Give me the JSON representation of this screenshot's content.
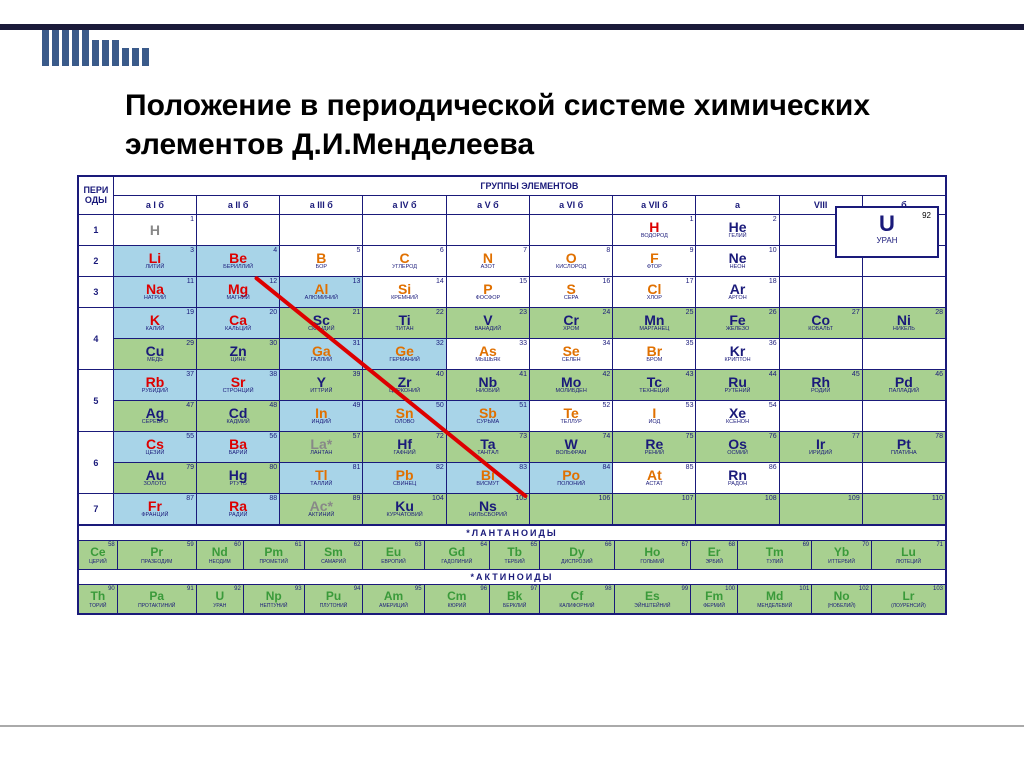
{
  "title": "Положение в периодической системе химических элементов Д.И.Менделеева",
  "headers": {
    "groups": "ГРУППЫ ЭЛЕМЕНТОВ",
    "periods": "ПЕРИ ОДЫ",
    "cols": [
      "а I б",
      "а II б",
      "а III б",
      "а IV б",
      "а V б",
      "а VI б",
      "а VII б",
      "а",
      "VIII",
      "б"
    ]
  },
  "legend": {
    "sym": "U",
    "name": "УРАН",
    "num": "92"
  },
  "periods": [
    {
      "n": "1",
      "rows": [
        [
          {
            "s": "H",
            "n": "",
            "num": "1",
            "bg": "bg-white",
            "c": "c-gray"
          },
          null,
          null,
          null,
          null,
          null,
          {
            "s": "H",
            "n": "ВОДОРОД",
            "num": "1",
            "bg": "bg-white",
            "c": "c-red"
          },
          {
            "s": "He",
            "n": "ГЕЛИЙ",
            "num": "2",
            "bg": "bg-white",
            "c": "c-blue"
          },
          null,
          null
        ]
      ]
    },
    {
      "n": "2",
      "rows": [
        [
          {
            "s": "Li",
            "n": "ЛИТИЙ",
            "num": "3",
            "bg": "bg-blue",
            "c": "c-red"
          },
          {
            "s": "Be",
            "n": "БЕРИЛЛИЙ",
            "num": "4",
            "bg": "bg-blue",
            "c": "c-red"
          },
          {
            "s": "B",
            "n": "БОР",
            "num": "5",
            "bg": "bg-white",
            "c": "c-orange"
          },
          {
            "s": "C",
            "n": "УГЛЕРОД",
            "num": "6",
            "bg": "bg-white",
            "c": "c-orange"
          },
          {
            "s": "N",
            "n": "АЗОТ",
            "num": "7",
            "bg": "bg-white",
            "c": "c-orange"
          },
          {
            "s": "O",
            "n": "КИСЛОРОД",
            "num": "8",
            "bg": "bg-white",
            "c": "c-orange"
          },
          {
            "s": "F",
            "n": "ФТОР",
            "num": "9",
            "bg": "bg-white",
            "c": "c-orange"
          },
          {
            "s": "Ne",
            "n": "НЕОН",
            "num": "10",
            "bg": "bg-white",
            "c": "c-blue"
          },
          null,
          null
        ]
      ]
    },
    {
      "n": "3",
      "rows": [
        [
          {
            "s": "Na",
            "n": "НАТРИЙ",
            "num": "11",
            "bg": "bg-blue",
            "c": "c-red"
          },
          {
            "s": "Mg",
            "n": "МАГНИЙ",
            "num": "12",
            "bg": "bg-blue",
            "c": "c-red"
          },
          {
            "s": "Al",
            "n": "АЛЮМИНИЙ",
            "num": "13",
            "bg": "bg-blue",
            "c": "c-orange"
          },
          {
            "s": "Si",
            "n": "КРЕМНИЙ",
            "num": "14",
            "bg": "bg-white",
            "c": "c-orange"
          },
          {
            "s": "P",
            "n": "ФОСФОР",
            "num": "15",
            "bg": "bg-white",
            "c": "c-orange"
          },
          {
            "s": "S",
            "n": "СЕРА",
            "num": "16",
            "bg": "bg-white",
            "c": "c-orange"
          },
          {
            "s": "Cl",
            "n": "ХЛОР",
            "num": "17",
            "bg": "bg-white",
            "c": "c-orange"
          },
          {
            "s": "Ar",
            "n": "АРГОН",
            "num": "18",
            "bg": "bg-white",
            "c": "c-blue"
          },
          null,
          null
        ]
      ]
    },
    {
      "n": "4",
      "rows": [
        [
          {
            "s": "K",
            "n": "КАЛИЙ",
            "num": "19",
            "bg": "bg-blue",
            "c": "c-red"
          },
          {
            "s": "Ca",
            "n": "КАЛЬЦИЙ",
            "num": "20",
            "bg": "bg-blue",
            "c": "c-red"
          },
          {
            "s": "Sc",
            "n": "СКАНДИЙ",
            "num": "21",
            "bg": "bg-green",
            "c": "c-blue"
          },
          {
            "s": "Ti",
            "n": "ТИТАН",
            "num": "22",
            "bg": "bg-green",
            "c": "c-blue"
          },
          {
            "s": "V",
            "n": "ВАНАДИЙ",
            "num": "23",
            "bg": "bg-green",
            "c": "c-blue"
          },
          {
            "s": "Cr",
            "n": "ХРОМ",
            "num": "24",
            "bg": "bg-green",
            "c": "c-blue"
          },
          {
            "s": "Mn",
            "n": "МАРГАНЕЦ",
            "num": "25",
            "bg": "bg-green",
            "c": "c-blue"
          },
          {
            "s": "Fe",
            "n": "ЖЕЛЕЗО",
            "num": "26",
            "bg": "bg-green",
            "c": "c-blue"
          },
          {
            "s": "Co",
            "n": "КОБАЛЬТ",
            "num": "27",
            "bg": "bg-green",
            "c": "c-blue"
          },
          {
            "s": "Ni",
            "n": "НИКЕЛЬ",
            "num": "28",
            "bg": "bg-green",
            "c": "c-blue"
          }
        ],
        [
          {
            "s": "Cu",
            "n": "МЕДЬ",
            "num": "29",
            "bg": "bg-green",
            "c": "c-blue"
          },
          {
            "s": "Zn",
            "n": "ЦИНК",
            "num": "30",
            "bg": "bg-green",
            "c": "c-blue"
          },
          {
            "s": "Ga",
            "n": "ГАЛЛИЙ",
            "num": "31",
            "bg": "bg-blue",
            "c": "c-orange"
          },
          {
            "s": "Ge",
            "n": "ГЕРМАНИЙ",
            "num": "32",
            "bg": "bg-blue",
            "c": "c-orange"
          },
          {
            "s": "As",
            "n": "МЫШЬЯК",
            "num": "33",
            "bg": "bg-white",
            "c": "c-orange"
          },
          {
            "s": "Se",
            "n": "СЕЛЕН",
            "num": "34",
            "bg": "bg-white",
            "c": "c-orange"
          },
          {
            "s": "Br",
            "n": "БРОМ",
            "num": "35",
            "bg": "bg-white",
            "c": "c-orange"
          },
          {
            "s": "Kr",
            "n": "КРИПТОН",
            "num": "36",
            "bg": "bg-white",
            "c": "c-blue"
          },
          null,
          null
        ]
      ]
    },
    {
      "n": "5",
      "rows": [
        [
          {
            "s": "Rb",
            "n": "РУБИДИЙ",
            "num": "37",
            "bg": "bg-blue",
            "c": "c-red"
          },
          {
            "s": "Sr",
            "n": "СТРОНЦИЙ",
            "num": "38",
            "bg": "bg-blue",
            "c": "c-red"
          },
          {
            "s": "Y",
            "n": "ИТТРИЙ",
            "num": "39",
            "bg": "bg-green",
            "c": "c-blue"
          },
          {
            "s": "Zr",
            "n": "ЦИРКОНИЙ",
            "num": "40",
            "bg": "bg-green",
            "c": "c-blue"
          },
          {
            "s": "Nb",
            "n": "НИОБИЙ",
            "num": "41",
            "bg": "bg-green",
            "c": "c-blue"
          },
          {
            "s": "Mo",
            "n": "МОЛИБДЕН",
            "num": "42",
            "bg": "bg-green",
            "c": "c-blue"
          },
          {
            "s": "Tc",
            "n": "ТЕХНЕЦИЙ",
            "num": "43",
            "bg": "bg-green",
            "c": "c-blue"
          },
          {
            "s": "Ru",
            "n": "РУТЕНИЙ",
            "num": "44",
            "bg": "bg-green",
            "c": "c-blue"
          },
          {
            "s": "Rh",
            "n": "РОДИЙ",
            "num": "45",
            "bg": "bg-green",
            "c": "c-blue"
          },
          {
            "s": "Pd",
            "n": "ПАЛЛАДИЙ",
            "num": "46",
            "bg": "bg-green",
            "c": "c-blue"
          }
        ],
        [
          {
            "s": "Ag",
            "n": "СЕРЕБРО",
            "num": "47",
            "bg": "bg-green",
            "c": "c-blue"
          },
          {
            "s": "Cd",
            "n": "КАДМИЙ",
            "num": "48",
            "bg": "bg-green",
            "c": "c-blue"
          },
          {
            "s": "In",
            "n": "ИНДИЙ",
            "num": "49",
            "bg": "bg-blue",
            "c": "c-orange"
          },
          {
            "s": "Sn",
            "n": "ОЛОВО",
            "num": "50",
            "bg": "bg-blue",
            "c": "c-orange"
          },
          {
            "s": "Sb",
            "n": "СУРЬМА",
            "num": "51",
            "bg": "bg-blue",
            "c": "c-orange"
          },
          {
            "s": "Te",
            "n": "ТЕЛЛУР",
            "num": "52",
            "bg": "bg-white",
            "c": "c-orange"
          },
          {
            "s": "I",
            "n": "ИОД",
            "num": "53",
            "bg": "bg-white",
            "c": "c-orange"
          },
          {
            "s": "Xe",
            "n": "КСЕНОН",
            "num": "54",
            "bg": "bg-white",
            "c": "c-blue"
          },
          null,
          null
        ]
      ]
    },
    {
      "n": "6",
      "rows": [
        [
          {
            "s": "Cs",
            "n": "ЦЕЗИЙ",
            "num": "55",
            "bg": "bg-blue",
            "c": "c-red"
          },
          {
            "s": "Ba",
            "n": "БАРИЙ",
            "num": "56",
            "bg": "bg-blue",
            "c": "c-red"
          },
          {
            "s": "La*",
            "n": "ЛАНТАН",
            "num": "57",
            "bg": "bg-green",
            "c": "c-gray"
          },
          {
            "s": "Hf",
            "n": "ГАФНИЙ",
            "num": "72",
            "bg": "bg-green",
            "c": "c-blue"
          },
          {
            "s": "Ta",
            "n": "ТАНТАЛ",
            "num": "73",
            "bg": "bg-green",
            "c": "c-blue"
          },
          {
            "s": "W",
            "n": "ВОЛЬФРАМ",
            "num": "74",
            "bg": "bg-green",
            "c": "c-blue"
          },
          {
            "s": "Re",
            "n": "РЕНИЙ",
            "num": "75",
            "bg": "bg-green",
            "c": "c-blue"
          },
          {
            "s": "Os",
            "n": "ОСМИЙ",
            "num": "76",
            "bg": "bg-green",
            "c": "c-blue"
          },
          {
            "s": "Ir",
            "n": "ИРИДИЙ",
            "num": "77",
            "bg": "bg-green",
            "c": "c-blue"
          },
          {
            "s": "Pt",
            "n": "ПЛАТИНА",
            "num": "78",
            "bg": "bg-green",
            "c": "c-blue"
          }
        ],
        [
          {
            "s": "Au",
            "n": "ЗОЛОТО",
            "num": "79",
            "bg": "bg-green",
            "c": "c-blue"
          },
          {
            "s": "Hg",
            "n": "РТУТЬ",
            "num": "80",
            "bg": "bg-green",
            "c": "c-blue"
          },
          {
            "s": "Tl",
            "n": "ТАЛЛИЙ",
            "num": "81",
            "bg": "bg-blue",
            "c": "c-orange"
          },
          {
            "s": "Pb",
            "n": "СВИНЕЦ",
            "num": "82",
            "bg": "bg-blue",
            "c": "c-orange"
          },
          {
            "s": "Bi",
            "n": "ВИСМУТ",
            "num": "83",
            "bg": "bg-blue",
            "c": "c-orange"
          },
          {
            "s": "Po",
            "n": "ПОЛОНИЙ",
            "num": "84",
            "bg": "bg-blue",
            "c": "c-orange"
          },
          {
            "s": "At",
            "n": "АСТАТ",
            "num": "85",
            "bg": "bg-white",
            "c": "c-orange"
          },
          {
            "s": "Rn",
            "n": "РАДОН",
            "num": "86",
            "bg": "bg-white",
            "c": "c-blue"
          },
          null,
          null
        ]
      ]
    },
    {
      "n": "7",
      "rows": [
        [
          {
            "s": "Fr",
            "n": "ФРАНЦИЙ",
            "num": "87",
            "bg": "bg-blue",
            "c": "c-red"
          },
          {
            "s": "Ra",
            "n": "РАДИЙ",
            "num": "88",
            "bg": "bg-blue",
            "c": "c-red"
          },
          {
            "s": "Ac*",
            "n": "АКТИНИЙ",
            "num": "89",
            "bg": "bg-green",
            "c": "c-gray"
          },
          {
            "s": "Ku",
            "n": "КУРЧАТОВИЙ",
            "num": "104",
            "bg": "bg-green",
            "c": "c-blue"
          },
          {
            "s": "Ns",
            "n": "НИЛЬСБОРИЙ",
            "num": "105",
            "bg": "bg-green",
            "c": "c-blue"
          },
          {
            "s": "",
            "n": "",
            "num": "106",
            "bg": "bg-green",
            "c": "c-blue"
          },
          {
            "s": "",
            "n": "",
            "num": "107",
            "bg": "bg-green",
            "c": "c-blue"
          },
          {
            "s": "",
            "n": "",
            "num": "108",
            "bg": "bg-green",
            "c": "c-blue"
          },
          {
            "s": "",
            "n": "",
            "num": "109",
            "bg": "bg-green",
            "c": "c-blue"
          },
          {
            "s": "",
            "n": "",
            "num": "110",
            "bg": "bg-green",
            "c": "c-blue"
          }
        ]
      ]
    }
  ],
  "lanthanides": {
    "title": "*ЛАНТАНОИДЫ",
    "cells": [
      {
        "s": "Ce",
        "n": "ЦЕРИЙ",
        "num": "58"
      },
      {
        "s": "Pr",
        "n": "ПРАЗЕОДИМ",
        "num": "59"
      },
      {
        "s": "Nd",
        "n": "НЕОДИМ",
        "num": "60"
      },
      {
        "s": "Pm",
        "n": "ПРОМЕТИЙ",
        "num": "61"
      },
      {
        "s": "Sm",
        "n": "САМАРИЙ",
        "num": "62"
      },
      {
        "s": "Eu",
        "n": "ЕВРОПИЙ",
        "num": "63"
      },
      {
        "s": "Gd",
        "n": "ГАДОЛИНИЙ",
        "num": "64"
      },
      {
        "s": "Tb",
        "n": "ТЕРБИЙ",
        "num": "65"
      },
      {
        "s": "Dy",
        "n": "ДИСПРОЗИЙ",
        "num": "66"
      },
      {
        "s": "Ho",
        "n": "ГОЛЬМИЙ",
        "num": "67"
      },
      {
        "s": "Er",
        "n": "ЭРБИЙ",
        "num": "68"
      },
      {
        "s": "Tm",
        "n": "ТУЛИЙ",
        "num": "69"
      },
      {
        "s": "Yb",
        "n": "ИТТЕРБИЙ",
        "num": "70"
      },
      {
        "s": "Lu",
        "n": "ЛЮТЕЦИЙ",
        "num": "71"
      }
    ]
  },
  "actinides": {
    "title": "*АКТИНОИДЫ",
    "cells": [
      {
        "s": "Th",
        "n": "ТОРИЙ",
        "num": "90"
      },
      {
        "s": "Pa",
        "n": "ПРОТАКТИНИЙ",
        "num": "91"
      },
      {
        "s": "U",
        "n": "УРАН",
        "num": "92"
      },
      {
        "s": "Np",
        "n": "НЕПТУНИЙ",
        "num": "93"
      },
      {
        "s": "Pu",
        "n": "ПЛУТОНИЙ",
        "num": "94"
      },
      {
        "s": "Am",
        "n": "АМЕРИЦИЙ",
        "num": "95"
      },
      {
        "s": "Cm",
        "n": "КЮРИЙ",
        "num": "96"
      },
      {
        "s": "Bk",
        "n": "БЕРКЛИЙ",
        "num": "97"
      },
      {
        "s": "Cf",
        "n": "КАЛИФОРНИЙ",
        "num": "98"
      },
      {
        "s": "Es",
        "n": "ЭЙНШТЕЙНИЙ",
        "num": "99"
      },
      {
        "s": "Fm",
        "n": "ФЕРМИЙ",
        "num": "100"
      },
      {
        "s": "Md",
        "n": "МЕНДЕЛЕВИЙ",
        "num": "101"
      },
      {
        "s": "No",
        "n": "(НОБЕЛИЙ)",
        "num": "102"
      },
      {
        "s": "Lr",
        "n": "(ЛОУРЕНСИЙ)",
        "num": "103"
      }
    ]
  }
}
